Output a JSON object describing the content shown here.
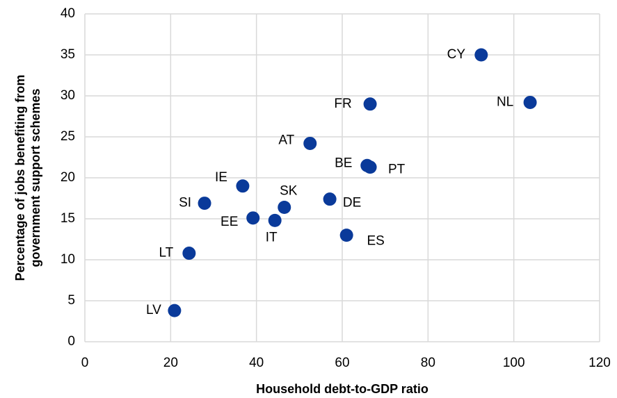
{
  "chart_data": {
    "type": "scatter",
    "x_label": "Household debt-to-GDP ratio",
    "y_label": [
      "Percentage of jobs benefiting from",
      "government support schemes"
    ],
    "color": "#0a3a9a",
    "grid": true,
    "xlim": [
      0,
      120
    ],
    "xticks": [
      0,
      20,
      40,
      60,
      80,
      100,
      120
    ],
    "ylim": [
      0,
      40
    ],
    "yticks": [
      0,
      5,
      10,
      15,
      20,
      25,
      30,
      35,
      40
    ],
    "labels": [
      "CY",
      "NL",
      "FR",
      "AT",
      "BE",
      "PT",
      "IE",
      "SI",
      "SK",
      "DE",
      "EE",
      "IT",
      "ES",
      "LT",
      "LV"
    ],
    "x": [
      92.4,
      103.8,
      66.5,
      52.5,
      65.8,
      66.5,
      36.8,
      27.9,
      46.5,
      57.1,
      39.2,
      44.3,
      61.0,
      24.3,
      20.9
    ],
    "y": [
      35.0,
      29.2,
      29.0,
      24.2,
      21.5,
      21.3,
      19.0,
      16.9,
      16.4,
      17.4,
      15.1,
      14.8,
      13.0,
      10.8,
      3.8
    ]
  }
}
